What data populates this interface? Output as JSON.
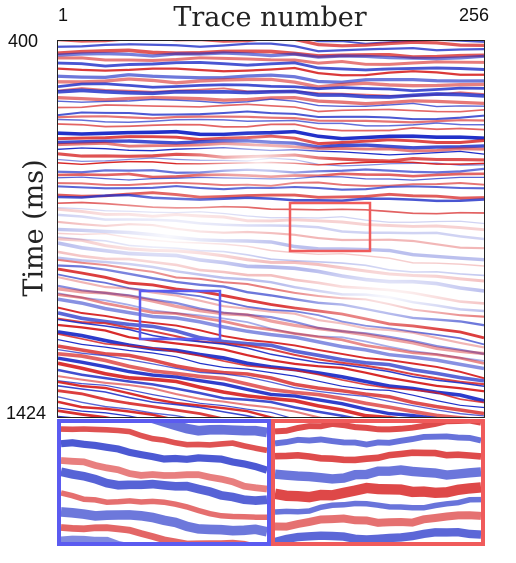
{
  "axes": {
    "x_title": "Trace number",
    "y_title": "Time (ms)",
    "x_start": "1",
    "x_end": "256",
    "y_start": "400",
    "y_end": "1424"
  },
  "colors": {
    "positive": "#d61e1e",
    "negative": "#1f2fc8",
    "zoom_box_blue": "#5b5bf0",
    "zoom_box_red": "#f05b5b"
  },
  "colormap": "seismic (blue-white-red)"
}
